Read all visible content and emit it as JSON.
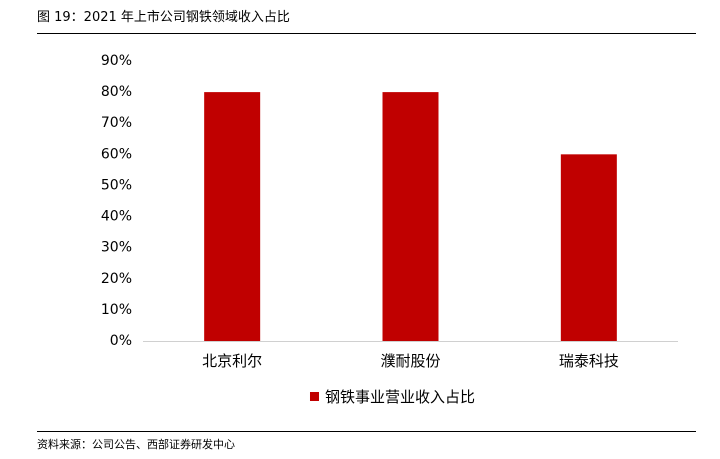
{
  "figure": {
    "title": "图 19：2021 年上市公司钢铁领域收入占比",
    "source": "资料来源：公司公告、西部证券研发中心"
  },
  "chart_data": {
    "type": "bar",
    "categories": [
      "北京利尔",
      "濮耐股份",
      "瑞泰科技"
    ],
    "series": [
      {
        "name": "钢铁事业营业收入占比",
        "values": [
          0.8,
          0.8,
          0.6
        ],
        "color": "#C00000"
      }
    ],
    "ylim": [
      0,
      0.9
    ],
    "yticks": [
      0,
      0.1,
      0.2,
      0.3,
      0.4,
      0.5,
      0.6,
      0.7,
      0.8,
      0.9
    ],
    "ytick_labels": [
      "0%",
      "10%",
      "20%",
      "30%",
      "40%",
      "50%",
      "60%",
      "70%",
      "80%",
      "90%"
    ],
    "grid": false,
    "legend_position": "bottom"
  }
}
